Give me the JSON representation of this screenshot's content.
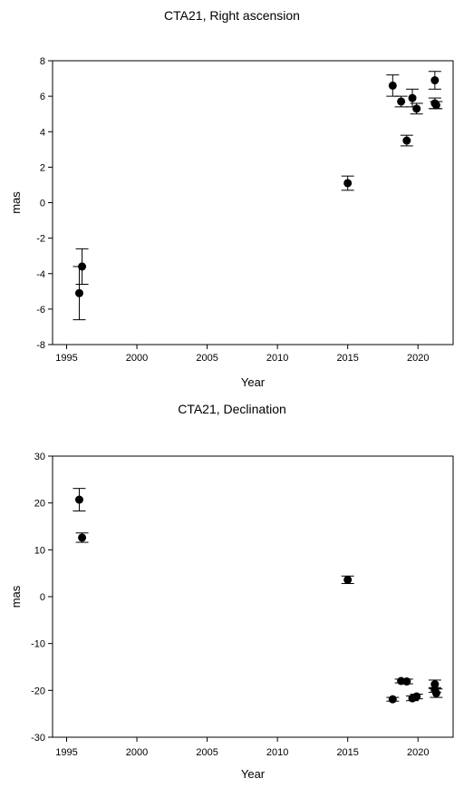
{
  "chart_data": [
    {
      "type": "scatter",
      "title": "CTA21, Right ascension",
      "xlabel": "Year",
      "ylabel": "mas",
      "xlim": [
        1994,
        2022.5
      ],
      "ylim": [
        -8,
        8
      ],
      "xticks": [
        1995,
        2000,
        2005,
        2010,
        2015,
        2020
      ],
      "yticks": [
        -8,
        -6,
        -4,
        -2,
        0,
        2,
        4,
        6,
        8
      ],
      "grid": false,
      "error_bars": true,
      "points": [
        {
          "x": 1995.9,
          "y": -5.1,
          "err": 1.5
        },
        {
          "x": 1996.1,
          "y": -3.6,
          "err": 1.0
        },
        {
          "x": 2015.0,
          "y": 1.1,
          "err": 0.4
        },
        {
          "x": 2018.2,
          "y": 6.6,
          "err": 0.6
        },
        {
          "x": 2018.8,
          "y": 5.7,
          "err": 0.3
        },
        {
          "x": 2019.2,
          "y": 3.5,
          "err": 0.3
        },
        {
          "x": 2019.6,
          "y": 5.9,
          "err": 0.5
        },
        {
          "x": 2019.9,
          "y": 5.3,
          "err": 0.3
        },
        {
          "x": 2021.2,
          "y": 6.9,
          "err": 0.5
        },
        {
          "x": 2021.2,
          "y": 5.6,
          "err": 0.3
        },
        {
          "x": 2021.3,
          "y": 5.5,
          "err": 0.2
        }
      ]
    },
    {
      "type": "scatter",
      "title": "CTA21, Declination",
      "xlabel": "Year",
      "ylabel": "mas",
      "xlim": [
        1994,
        2022.5
      ],
      "ylim": [
        -30,
        30
      ],
      "xticks": [
        1995,
        2000,
        2005,
        2010,
        2015,
        2020
      ],
      "yticks": [
        -30,
        -20,
        -10,
        0,
        10,
        20,
        30
      ],
      "grid": false,
      "error_bars": true,
      "points": [
        {
          "x": 1995.9,
          "y": 20.7,
          "err": 2.4
        },
        {
          "x": 1996.1,
          "y": 12.6,
          "err": 1.0
        },
        {
          "x": 2015.0,
          "y": 3.6,
          "err": 0.8
        },
        {
          "x": 2018.2,
          "y": -21.9,
          "err": 0.4
        },
        {
          "x": 2018.8,
          "y": -18.0,
          "err": 0.4
        },
        {
          "x": 2019.2,
          "y": -18.1,
          "err": 0.5
        },
        {
          "x": 2019.6,
          "y": -21.7,
          "err": 0.5
        },
        {
          "x": 2019.9,
          "y": -21.3,
          "err": 0.5
        },
        {
          "x": 2021.2,
          "y": -18.7,
          "err": 0.9
        },
        {
          "x": 2021.2,
          "y": -19.9,
          "err": 0.5
        },
        {
          "x": 2021.3,
          "y": -20.6,
          "err": 0.9
        }
      ]
    }
  ]
}
